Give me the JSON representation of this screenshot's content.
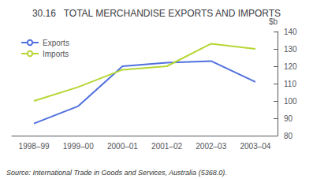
{
  "chart_data": {
    "type": "line",
    "title": "30.16   TOTAL MERCHANDISE EXPORTS AND IMPORTS",
    "categories": [
      "1998–99",
      "1999–00",
      "2000–01",
      "2001–02",
      "2002–03",
      "2003–04"
    ],
    "series": [
      {
        "name": "Exports",
        "values": [
          87,
          97,
          120,
          122,
          123,
          111
        ]
      },
      {
        "name": "Imports",
        "values": [
          100,
          108,
          118,
          120,
          133,
          130
        ]
      }
    ],
    "ylabel": "$b",
    "ylim": [
      80,
      140
    ],
    "yticks": [
      80,
      90,
      100,
      110,
      120,
      130,
      140
    ],
    "annotations": [
      "Source: International Trade in Goods and Services, Australia (5368.0)."
    ],
    "legend": "upper left",
    "grid": false
  }
}
